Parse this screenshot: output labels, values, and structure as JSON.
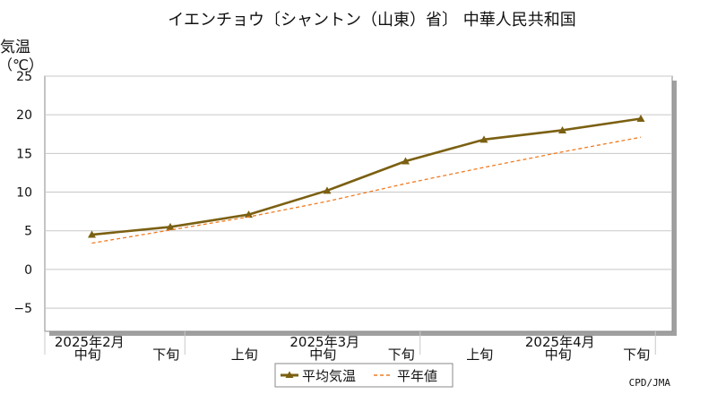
{
  "chart_data": {
    "type": "line",
    "title": "イエンチョウ〔シャントン（山東）省〕 中華人民共和国",
    "ylabel_line1": "気温",
    "ylabel_line2": "（℃）",
    "ylim": [
      -8,
      25
    ],
    "yticks": [
      "25",
      "20",
      "15",
      "10",
      "5",
      "0",
      "−5"
    ],
    "ytick_values": [
      25,
      20,
      15,
      10,
      5,
      0,
      -5
    ],
    "x_periods": [
      "中旬",
      "下旬",
      "上旬",
      "中旬",
      "下旬",
      "上旬",
      "中旬",
      "下旬"
    ],
    "x_months": [
      "2025年2月",
      "2025年3月",
      "2025年4月"
    ],
    "series": [
      {
        "name": "平均気温",
        "color": "#7b6012",
        "marker": "triangle",
        "values": [
          4.5,
          5.5,
          7.1,
          10.2,
          14.0,
          16.8,
          18.0,
          19.5
        ]
      },
      {
        "name": "平年値",
        "color": "#f07b20",
        "style": "dashed",
        "values": [
          3.4,
          5.1,
          6.8,
          8.8,
          11.1,
          13.2,
          15.2,
          17.1
        ]
      }
    ],
    "grid": true,
    "legend_position": "bottom-center",
    "source": "CPD/JMA"
  }
}
